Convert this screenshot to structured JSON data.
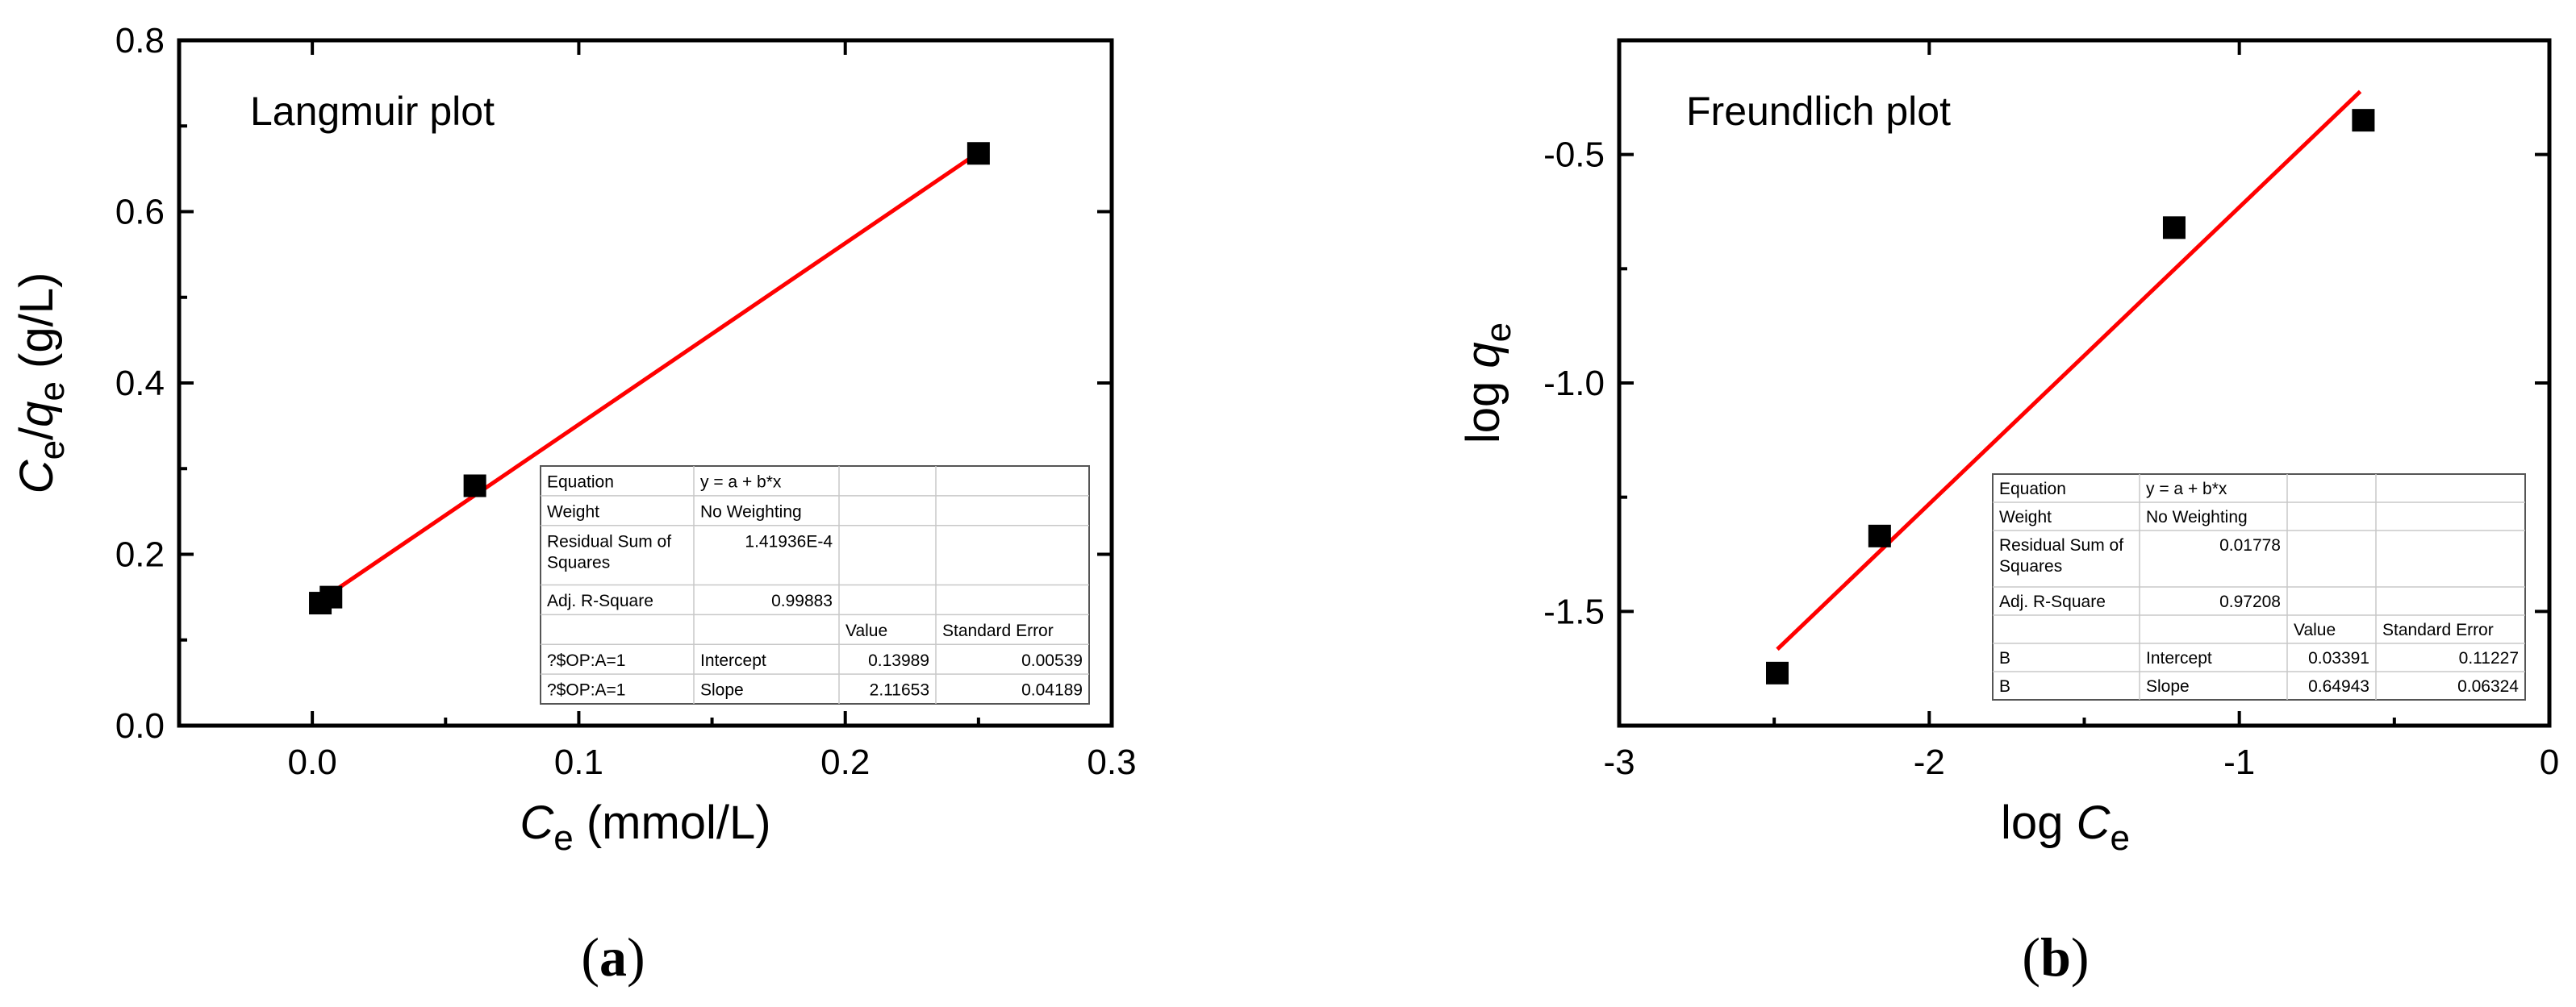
{
  "chart_data": [
    {
      "type": "scatter",
      "panel_label": "a",
      "inset_title": "Langmuir plot",
      "xlabel": {
        "italic": "C",
        "sub": "e",
        "rest": " (mmol/L)"
      },
      "ylabel": {
        "c": "C",
        "c_sub": "e",
        "slash": "/",
        "q": "q",
        "q_sub": "e",
        "rest": " (g/L)"
      },
      "xlim": [
        -0.05,
        0.3
      ],
      "ylim": [
        0.0,
        0.8
      ],
      "x_ticks": [
        0.0,
        0.1,
        0.2,
        0.3
      ],
      "x_tick_labels": [
        "0.0",
        "0.1",
        "0.2",
        "0.3"
      ],
      "y_ticks": [
        0.0,
        0.2,
        0.4,
        0.6,
        0.8
      ],
      "y_tick_labels": [
        "0.0",
        "0.2",
        "0.4",
        "0.6",
        "0.8"
      ],
      "grid": false,
      "series": [
        {
          "x": [
            0.003,
            0.007,
            0.061,
            0.25
          ],
          "y": [
            0.143,
            0.15,
            0.28,
            0.668
          ],
          "marker": "square",
          "color": "#000000"
        }
      ],
      "fit_line": {
        "x": [
          0.003,
          0.25
        ],
        "y": [
          0.1462,
          0.669
        ],
        "color": "#ff0000"
      },
      "fit_table": {
        "rows": [
          [
            "Equation",
            "y = a + b*x",
            "",
            ""
          ],
          [
            "Weight",
            "No Weighting",
            "",
            ""
          ],
          [
            "Residual Sum of Squares",
            "1.41936E-4",
            "",
            ""
          ],
          [
            "Adj. R-Square",
            "0.99883",
            "",
            ""
          ],
          [
            "",
            "",
            "Value",
            "Standard Error"
          ],
          [
            "?$OP:A=1",
            "Intercept",
            "0.13989",
            "0.00539"
          ],
          [
            "?$OP:A=1",
            "Slope",
            "2.11653",
            "0.04189"
          ]
        ]
      }
    },
    {
      "type": "scatter",
      "panel_label": "b",
      "inset_title": "Freundlich plot",
      "xlabel": {
        "pre": "log ",
        "italic": "C",
        "sub": "e"
      },
      "ylabel": {
        "pre": "log ",
        "italic": "q",
        "sub": "e"
      },
      "xlim": [
        -3,
        0
      ],
      "ylim": [
        -1.75,
        -0.25
      ],
      "x_ticks": [
        -3,
        -2,
        -1,
        0
      ],
      "x_tick_labels": [
        "-3",
        "-2",
        "-1",
        "0"
      ],
      "y_ticks": [
        -1.5,
        -1.0,
        -0.5
      ],
      "y_tick_labels": [
        "-1.5",
        "-1.0",
        "-0.5"
      ],
      "grid": false,
      "series": [
        {
          "x": [
            -2.49,
            -2.16,
            -1.21,
            -0.6
          ],
          "y": [
            -1.635,
            -1.335,
            -0.66,
            -0.425
          ],
          "marker": "square",
          "color": "#000000"
        }
      ],
      "fit_line": {
        "x": [
          -2.49,
          -0.61
        ],
        "y": [
          -1.583,
          -0.362
        ],
        "color": "#ff0000"
      },
      "fit_table": {
        "rows": [
          [
            "Equation",
            "y = a + b*x",
            "",
            ""
          ],
          [
            "Weight",
            "No Weighting",
            "",
            ""
          ],
          [
            "Residual Sum of Squares",
            "0.01778",
            "",
            ""
          ],
          [
            "Adj. R-Square",
            "0.97208",
            "",
            ""
          ],
          [
            "",
            "",
            "Value",
            "Standard Error"
          ],
          [
            "B",
            "Intercept",
            "0.03391",
            "0.11227"
          ],
          [
            "B",
            "Slope",
            "0.64943",
            "0.06324"
          ]
        ]
      }
    }
  ]
}
